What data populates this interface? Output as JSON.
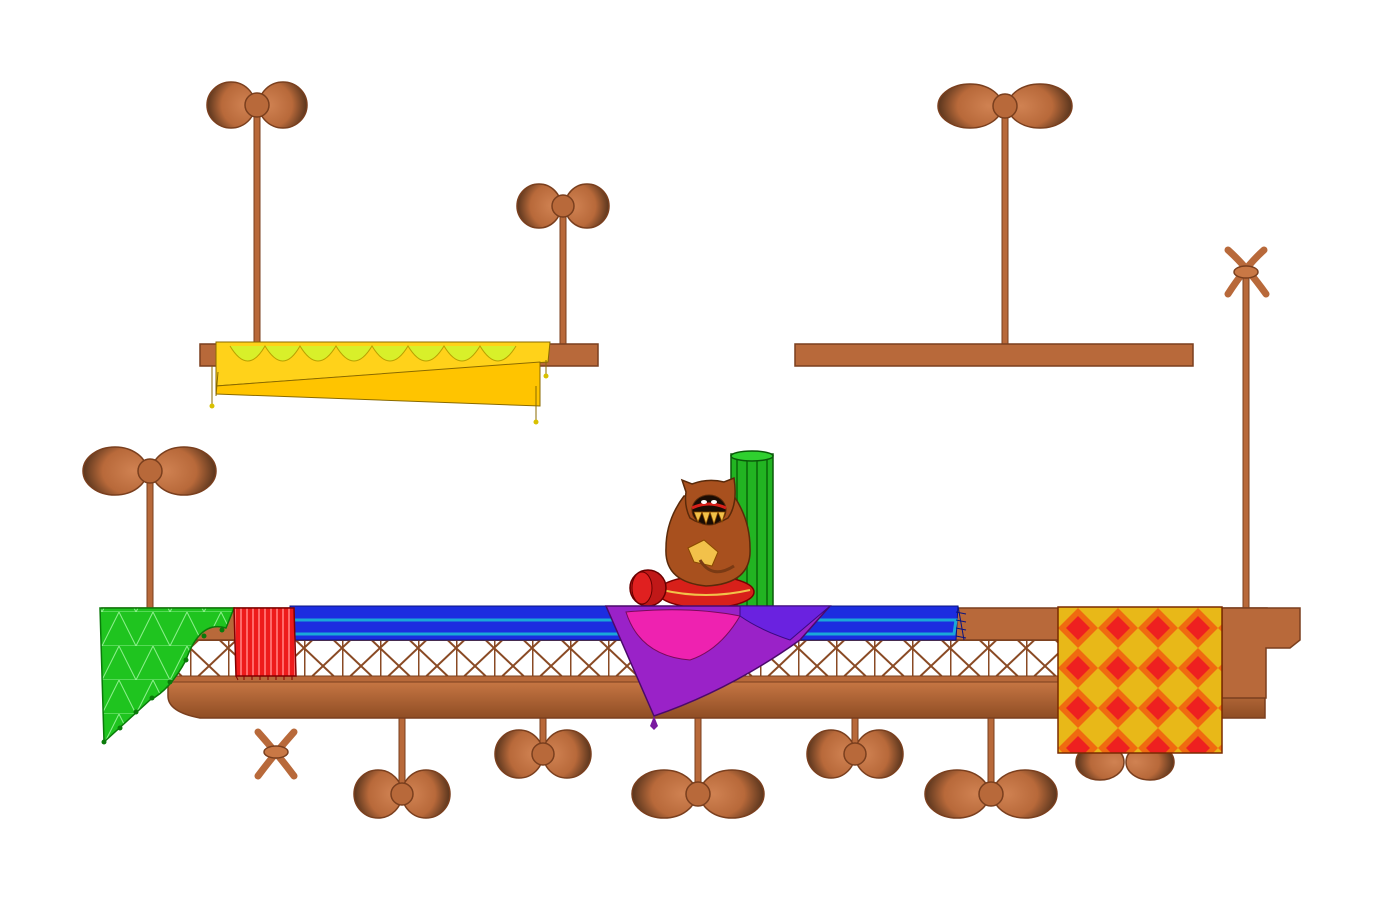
{
  "scene": {
    "type": "platformer-stage",
    "background_color": "#ffffff"
  },
  "colors": {
    "wood": "#b8693a",
    "wood_dark": "#7a3f1e",
    "wood_light": "#d08252",
    "prop_dark": "#3a2414",
    "rug_yellow": "#ffd21a",
    "rug_lemon": "#d8f02a",
    "rug_green": "#1fc41f",
    "rug_red": "#ee1b1b",
    "rug_blue": "#1c2de0",
    "rug_cyan": "#1aa8d8",
    "rug_purple": "#9a22c8",
    "rug_magenta": "#ee22b0",
    "rug_violet": "#6a22e0",
    "rug_orange": "#f06a10",
    "rug_gold": "#e8b818",
    "cactus_green": "#22b422",
    "creature_brown": "#a8501e",
    "creature_belly": "#f2c14a",
    "cushion_red": "#d8201a"
  },
  "propellers": [
    {
      "id": "top-left",
      "icon": "propeller-icon"
    },
    {
      "id": "top-mid",
      "icon": "propeller-icon"
    },
    {
      "id": "top-right",
      "icon": "propeller-icon"
    },
    {
      "id": "left-mast",
      "icon": "propeller-icon"
    },
    {
      "id": "under-1",
      "icon": "propeller-icon"
    },
    {
      "id": "under-2",
      "icon": "propeller-icon"
    },
    {
      "id": "under-3",
      "icon": "propeller-icon"
    },
    {
      "id": "under-4",
      "icon": "propeller-icon"
    },
    {
      "id": "under-5",
      "icon": "propeller-icon"
    },
    {
      "id": "under-6",
      "icon": "propeller-icon"
    }
  ],
  "items": {
    "left_platform_rug": "yellow-lemon-rug",
    "stage_rugs": [
      "green-triangle-rug",
      "red-striped-rug",
      "blue-runner-rug",
      "purple-fold-rug",
      "argyle-checker-rug"
    ],
    "character": "hooded-creature-on-cushion",
    "prop": "green-rolled-carpet"
  }
}
